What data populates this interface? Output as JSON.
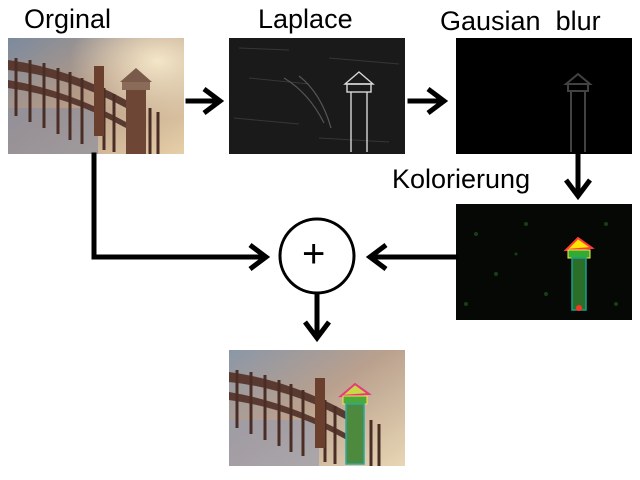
{
  "labels": {
    "original": "Orginal",
    "laplace": "Laplace",
    "gaussian_blur": "Gausian  blur",
    "colorization": "Kolorierung",
    "sum_operator": "+"
  },
  "stages": [
    {
      "id": "original",
      "description_name": "original-photo"
    },
    {
      "id": "laplace",
      "description_name": "laplace-edge-image"
    },
    {
      "id": "gaussian",
      "description_name": "gaussian-blurred-image"
    },
    {
      "id": "colorized",
      "description_name": "colorized-edge-image"
    },
    {
      "id": "result",
      "description_name": "combined-result-image"
    }
  ],
  "colors": {
    "arrow": "#000000",
    "background": "#ffffff"
  }
}
